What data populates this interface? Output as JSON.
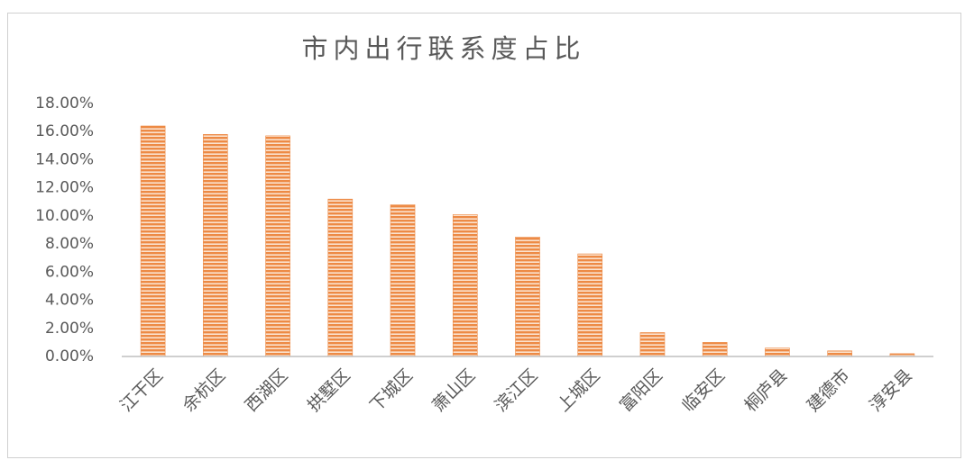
{
  "chart_data": {
    "type": "bar",
    "title": "市内出行联系度占比",
    "categories": [
      "江干区",
      "余杭区",
      "西湖区",
      "拱墅区",
      "下城区",
      "萧山区",
      "滨江区",
      "上城区",
      "富阳区",
      "临安区",
      "桐庐县",
      "建德市",
      "淳安县"
    ],
    "values": [
      16.4,
      15.8,
      15.7,
      11.2,
      10.8,
      10.1,
      8.5,
      7.3,
      1.7,
      1.0,
      0.6,
      0.4,
      0.2
    ],
    "color": "#ed8a45",
    "ylim": [
      0,
      18
    ],
    "yticks": [
      {
        "value": 0,
        "label": "0.00%"
      },
      {
        "value": 2,
        "label": "2.00%"
      },
      {
        "value": 4,
        "label": "4.00%"
      },
      {
        "value": 6,
        "label": "6.00%"
      },
      {
        "value": 8,
        "label": "8.00%"
      },
      {
        "value": 10,
        "label": "10.00%"
      },
      {
        "value": 12,
        "label": "12.00%"
      },
      {
        "value": 14,
        "label": "14.00%"
      },
      {
        "value": 16,
        "label": "16.00%"
      },
      {
        "value": 18,
        "label": "18.00%"
      }
    ],
    "grid": false
  }
}
